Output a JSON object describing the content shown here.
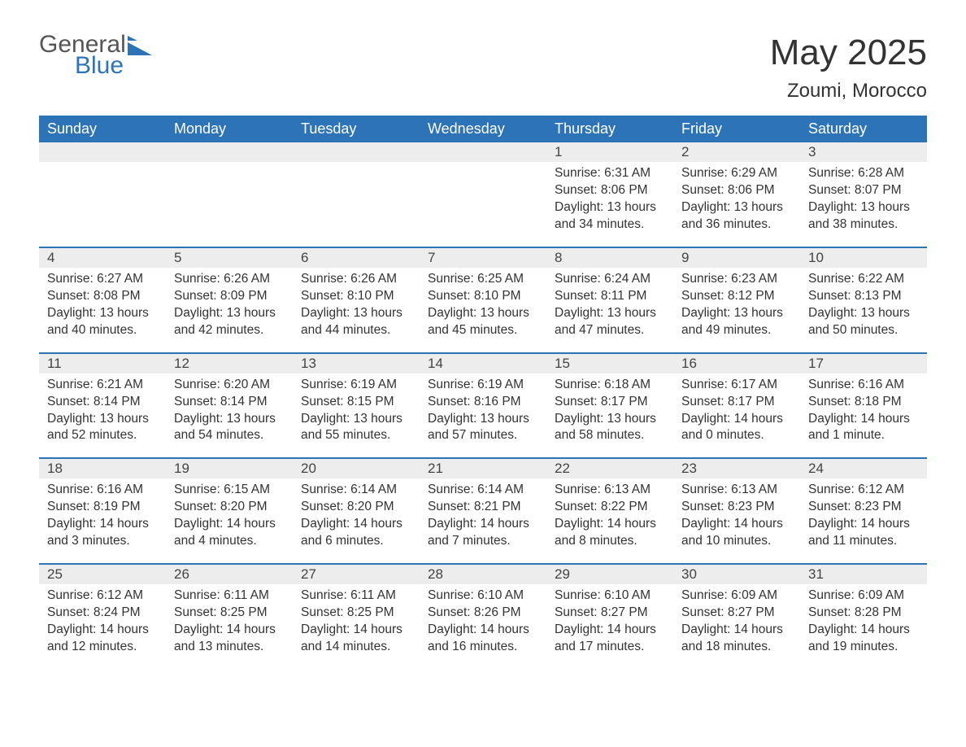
{
  "logo": {
    "text_general": "General",
    "text_blue": "Blue",
    "flag_color": "#2d73b8"
  },
  "title": {
    "month_year": "May 2025",
    "location": "Zoumi, Morocco"
  },
  "colors": {
    "header_bg": "#2d73b8",
    "header_text": "#ffffff",
    "daynum_bg": "#ededed",
    "row_border": "#2d73b8",
    "body_text": "#333333",
    "page_bg": "#ffffff"
  },
  "calendar": {
    "weekdays": [
      "Sunday",
      "Monday",
      "Tuesday",
      "Wednesday",
      "Thursday",
      "Friday",
      "Saturday"
    ],
    "leading_blanks": 4,
    "days": [
      {
        "n": "1",
        "sunrise": "Sunrise: 6:31 AM",
        "sunset": "Sunset: 8:06 PM",
        "dl1": "Daylight: 13 hours",
        "dl2": "and 34 minutes."
      },
      {
        "n": "2",
        "sunrise": "Sunrise: 6:29 AM",
        "sunset": "Sunset: 8:06 PM",
        "dl1": "Daylight: 13 hours",
        "dl2": "and 36 minutes."
      },
      {
        "n": "3",
        "sunrise": "Sunrise: 6:28 AM",
        "sunset": "Sunset: 8:07 PM",
        "dl1": "Daylight: 13 hours",
        "dl2": "and 38 minutes."
      },
      {
        "n": "4",
        "sunrise": "Sunrise: 6:27 AM",
        "sunset": "Sunset: 8:08 PM",
        "dl1": "Daylight: 13 hours",
        "dl2": "and 40 minutes."
      },
      {
        "n": "5",
        "sunrise": "Sunrise: 6:26 AM",
        "sunset": "Sunset: 8:09 PM",
        "dl1": "Daylight: 13 hours",
        "dl2": "and 42 minutes."
      },
      {
        "n": "6",
        "sunrise": "Sunrise: 6:26 AM",
        "sunset": "Sunset: 8:10 PM",
        "dl1": "Daylight: 13 hours",
        "dl2": "and 44 minutes."
      },
      {
        "n": "7",
        "sunrise": "Sunrise: 6:25 AM",
        "sunset": "Sunset: 8:10 PM",
        "dl1": "Daylight: 13 hours",
        "dl2": "and 45 minutes."
      },
      {
        "n": "8",
        "sunrise": "Sunrise: 6:24 AM",
        "sunset": "Sunset: 8:11 PM",
        "dl1": "Daylight: 13 hours",
        "dl2": "and 47 minutes."
      },
      {
        "n": "9",
        "sunrise": "Sunrise: 6:23 AM",
        "sunset": "Sunset: 8:12 PM",
        "dl1": "Daylight: 13 hours",
        "dl2": "and 49 minutes."
      },
      {
        "n": "10",
        "sunrise": "Sunrise: 6:22 AM",
        "sunset": "Sunset: 8:13 PM",
        "dl1": "Daylight: 13 hours",
        "dl2": "and 50 minutes."
      },
      {
        "n": "11",
        "sunrise": "Sunrise: 6:21 AM",
        "sunset": "Sunset: 8:14 PM",
        "dl1": "Daylight: 13 hours",
        "dl2": "and 52 minutes."
      },
      {
        "n": "12",
        "sunrise": "Sunrise: 6:20 AM",
        "sunset": "Sunset: 8:14 PM",
        "dl1": "Daylight: 13 hours",
        "dl2": "and 54 minutes."
      },
      {
        "n": "13",
        "sunrise": "Sunrise: 6:19 AM",
        "sunset": "Sunset: 8:15 PM",
        "dl1": "Daylight: 13 hours",
        "dl2": "and 55 minutes."
      },
      {
        "n": "14",
        "sunrise": "Sunrise: 6:19 AM",
        "sunset": "Sunset: 8:16 PM",
        "dl1": "Daylight: 13 hours",
        "dl2": "and 57 minutes."
      },
      {
        "n": "15",
        "sunrise": "Sunrise: 6:18 AM",
        "sunset": "Sunset: 8:17 PM",
        "dl1": "Daylight: 13 hours",
        "dl2": "and 58 minutes."
      },
      {
        "n": "16",
        "sunrise": "Sunrise: 6:17 AM",
        "sunset": "Sunset: 8:17 PM",
        "dl1": "Daylight: 14 hours",
        "dl2": "and 0 minutes."
      },
      {
        "n": "17",
        "sunrise": "Sunrise: 6:16 AM",
        "sunset": "Sunset: 8:18 PM",
        "dl1": "Daylight: 14 hours",
        "dl2": "and 1 minute."
      },
      {
        "n": "18",
        "sunrise": "Sunrise: 6:16 AM",
        "sunset": "Sunset: 8:19 PM",
        "dl1": "Daylight: 14 hours",
        "dl2": "and 3 minutes."
      },
      {
        "n": "19",
        "sunrise": "Sunrise: 6:15 AM",
        "sunset": "Sunset: 8:20 PM",
        "dl1": "Daylight: 14 hours",
        "dl2": "and 4 minutes."
      },
      {
        "n": "20",
        "sunrise": "Sunrise: 6:14 AM",
        "sunset": "Sunset: 8:20 PM",
        "dl1": "Daylight: 14 hours",
        "dl2": "and 6 minutes."
      },
      {
        "n": "21",
        "sunrise": "Sunrise: 6:14 AM",
        "sunset": "Sunset: 8:21 PM",
        "dl1": "Daylight: 14 hours",
        "dl2": "and 7 minutes."
      },
      {
        "n": "22",
        "sunrise": "Sunrise: 6:13 AM",
        "sunset": "Sunset: 8:22 PM",
        "dl1": "Daylight: 14 hours",
        "dl2": "and 8 minutes."
      },
      {
        "n": "23",
        "sunrise": "Sunrise: 6:13 AM",
        "sunset": "Sunset: 8:23 PM",
        "dl1": "Daylight: 14 hours",
        "dl2": "and 10 minutes."
      },
      {
        "n": "24",
        "sunrise": "Sunrise: 6:12 AM",
        "sunset": "Sunset: 8:23 PM",
        "dl1": "Daylight: 14 hours",
        "dl2": "and 11 minutes."
      },
      {
        "n": "25",
        "sunrise": "Sunrise: 6:12 AM",
        "sunset": "Sunset: 8:24 PM",
        "dl1": "Daylight: 14 hours",
        "dl2": "and 12 minutes."
      },
      {
        "n": "26",
        "sunrise": "Sunrise: 6:11 AM",
        "sunset": "Sunset: 8:25 PM",
        "dl1": "Daylight: 14 hours",
        "dl2": "and 13 minutes."
      },
      {
        "n": "27",
        "sunrise": "Sunrise: 6:11 AM",
        "sunset": "Sunset: 8:25 PM",
        "dl1": "Daylight: 14 hours",
        "dl2": "and 14 minutes."
      },
      {
        "n": "28",
        "sunrise": "Sunrise: 6:10 AM",
        "sunset": "Sunset: 8:26 PM",
        "dl1": "Daylight: 14 hours",
        "dl2": "and 16 minutes."
      },
      {
        "n": "29",
        "sunrise": "Sunrise: 6:10 AM",
        "sunset": "Sunset: 8:27 PM",
        "dl1": "Daylight: 14 hours",
        "dl2": "and 17 minutes."
      },
      {
        "n": "30",
        "sunrise": "Sunrise: 6:09 AM",
        "sunset": "Sunset: 8:27 PM",
        "dl1": "Daylight: 14 hours",
        "dl2": "and 18 minutes."
      },
      {
        "n": "31",
        "sunrise": "Sunrise: 6:09 AM",
        "sunset": "Sunset: 8:28 PM",
        "dl1": "Daylight: 14 hours",
        "dl2": "and 19 minutes."
      }
    ]
  }
}
